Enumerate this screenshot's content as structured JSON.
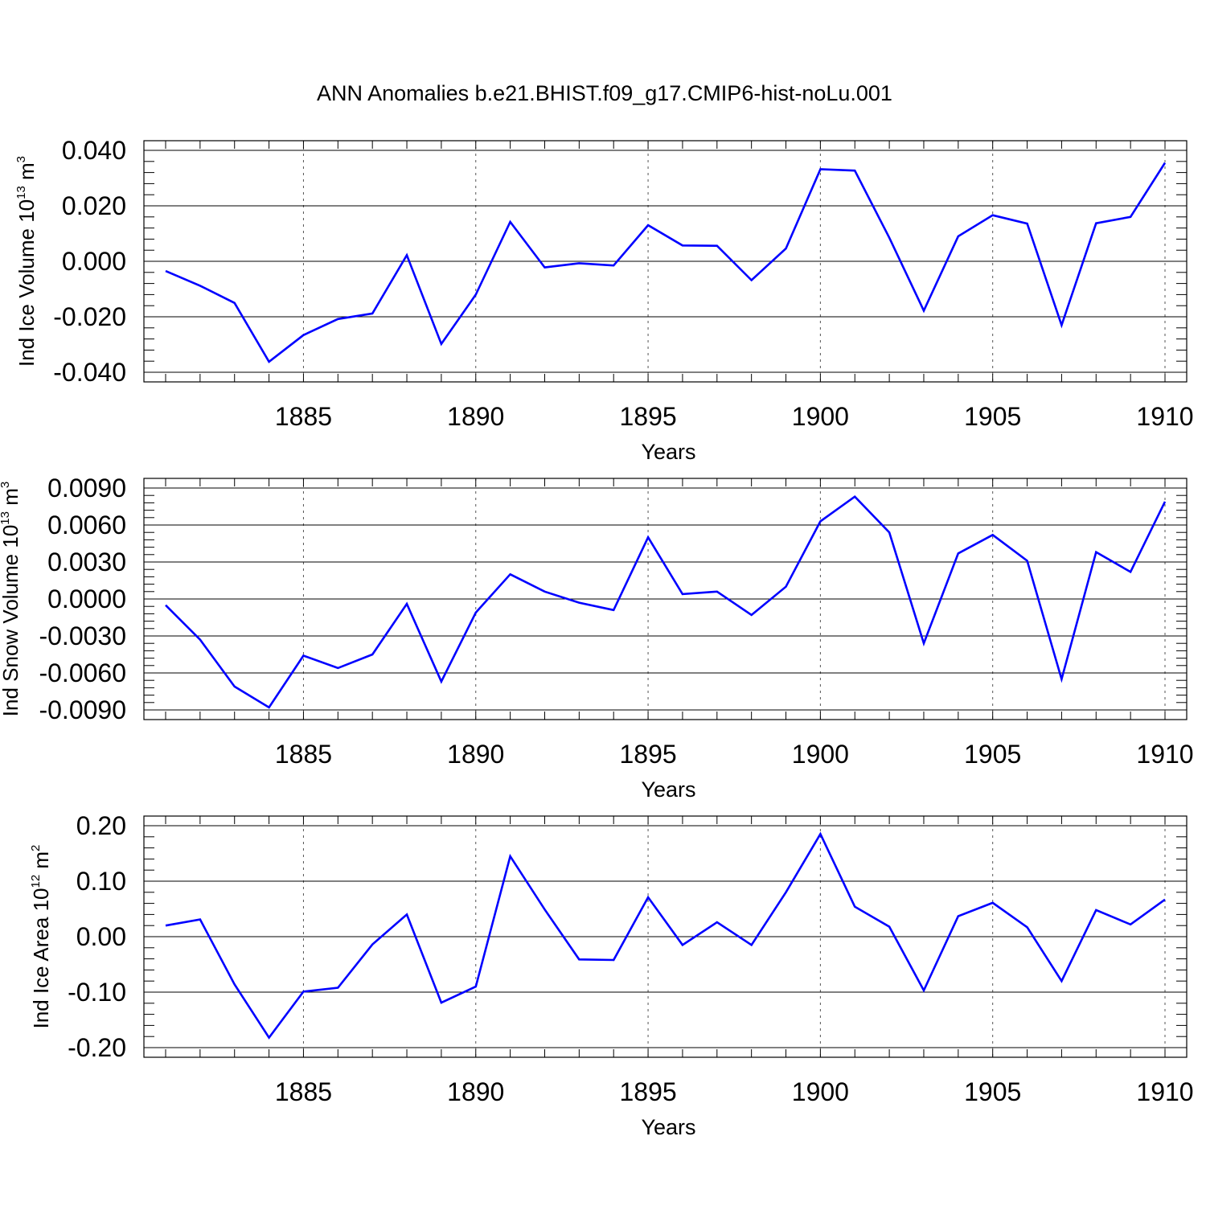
{
  "chart_data": {
    "title": "ANN Anomalies b.e21.BHIST.f09_g17.CMIP6-hist-noLu.001",
    "line_color": "#0000ff",
    "panels": [
      {
        "type": "line",
        "ylabel": {
          "main": "Ind Ice Volume 10",
          "exp": "13",
          "unit": " m",
          "unit_exp": "3"
        },
        "xlabel": "Years",
        "xlim": [
          1881,
          1910
        ],
        "ylim": [
          -0.04,
          0.04
        ],
        "yticks": [
          -0.04,
          -0.02,
          0.0,
          0.02,
          0.04
        ],
        "ytick_labels": [
          "-0.040",
          "-0.020",
          "0.000",
          "0.020",
          "0.040"
        ],
        "xticks": [
          1885,
          1890,
          1895,
          1900,
          1905,
          1910
        ],
        "xtick_labels": [
          "1885",
          "1890",
          "1895",
          "1900",
          "1905",
          "1910"
        ],
        "series": [
          {
            "name": "Ind Ice Volume",
            "x": [
              1881,
              1882,
              1883,
              1884,
              1885,
              1886,
              1887,
              1888,
              1889,
              1890,
              1891,
              1892,
              1893,
              1894,
              1895,
              1896,
              1897,
              1898,
              1899,
              1900,
              1901,
              1902,
              1903,
              1904,
              1905,
              1906,
              1907,
              1908,
              1909,
              1910
            ],
            "values": [
              -0.0035,
              -0.0088,
              -0.015,
              -0.0362,
              -0.0266,
              -0.0208,
              -0.0188,
              0.0022,
              -0.0298,
              -0.012,
              0.0142,
              -0.0022,
              -0.0007,
              -0.0015,
              0.013,
              0.0057,
              0.0056,
              -0.0068,
              0.0046,
              0.0332,
              0.0327,
              0.0085,
              -0.0178,
              0.009,
              0.0166,
              0.0136,
              -0.023,
              0.0137,
              0.016,
              0.0355
            ]
          }
        ]
      },
      {
        "type": "line",
        "ylabel": {
          "main": "Ind Snow Volume 10",
          "exp": "13",
          "unit": " m",
          "unit_exp": "3"
        },
        "xlabel": "Years",
        "xlim": [
          1881,
          1910
        ],
        "ylim": [
          -0.009,
          0.009
        ],
        "yticks": [
          -0.009,
          -0.006,
          -0.003,
          0.0,
          0.003,
          0.006,
          0.009
        ],
        "ytick_labels": [
          "-0.0090",
          "-0.0060",
          "-0.0030",
          "0.0000",
          "0.0030",
          "0.0060",
          "0.0090"
        ],
        "xticks": [
          1885,
          1890,
          1895,
          1900,
          1905,
          1910
        ],
        "xtick_labels": [
          "1885",
          "1890",
          "1895",
          "1900",
          "1905",
          "1910"
        ],
        "series": [
          {
            "name": "Ind Snow Volume",
            "x": [
              1881,
              1882,
              1883,
              1884,
              1885,
              1886,
              1887,
              1888,
              1889,
              1890,
              1891,
              1892,
              1893,
              1894,
              1895,
              1896,
              1897,
              1898,
              1899,
              1900,
              1901,
              1902,
              1903,
              1904,
              1905,
              1906,
              1907,
              1908,
              1909,
              1910
            ],
            "values": [
              -0.0005,
              -0.0033,
              -0.0071,
              -0.0088,
              -0.0046,
              -0.0056,
              -0.0045,
              -0.0004,
              -0.0067,
              -0.0011,
              0.002,
              0.0006,
              -0.0003,
              -0.0009,
              0.005,
              0.0004,
              0.0006,
              -0.0013,
              0.001,
              0.0063,
              0.0083,
              0.0054,
              -0.0036,
              0.0037,
              0.0052,
              0.0031,
              -0.0065,
              0.0038,
              0.0022,
              0.0079
            ]
          }
        ]
      },
      {
        "type": "line",
        "ylabel": {
          "main": "Ind Ice Area 10",
          "exp": "12",
          "unit": " m",
          "unit_exp": "2"
        },
        "xlabel": "Years",
        "xlim": [
          1881,
          1910
        ],
        "ylim": [
          -0.2,
          0.2
        ],
        "yticks": [
          -0.2,
          -0.1,
          0.0,
          0.1,
          0.2
        ],
        "ytick_labels": [
          "-0.20",
          "-0.10",
          "0.00",
          "0.10",
          "0.20"
        ],
        "xticks": [
          1885,
          1890,
          1895,
          1900,
          1905,
          1910
        ],
        "xtick_labels": [
          "1885",
          "1890",
          "1895",
          "1900",
          "1905",
          "1910"
        ],
        "series": [
          {
            "name": "Ind Ice Area",
            "x": [
              1881,
              1882,
              1883,
              1884,
              1885,
              1886,
              1887,
              1888,
              1889,
              1890,
              1891,
              1892,
              1893,
              1894,
              1895,
              1896,
              1897,
              1898,
              1899,
              1900,
              1901,
              1902,
              1903,
              1904,
              1905,
              1906,
              1907,
              1908,
              1909,
              1910
            ],
            "values": [
              0.02,
              0.031,
              -0.086,
              -0.182,
              -0.099,
              -0.092,
              -0.014,
              0.04,
              -0.119,
              -0.09,
              0.145,
              0.049,
              -0.041,
              -0.042,
              0.071,
              -0.015,
              0.026,
              -0.015,
              0.08,
              0.185,
              0.054,
              0.018,
              -0.097,
              0.037,
              0.061,
              0.017,
              -0.08,
              0.048,
              0.022,
              0.067
            ]
          }
        ]
      }
    ]
  }
}
